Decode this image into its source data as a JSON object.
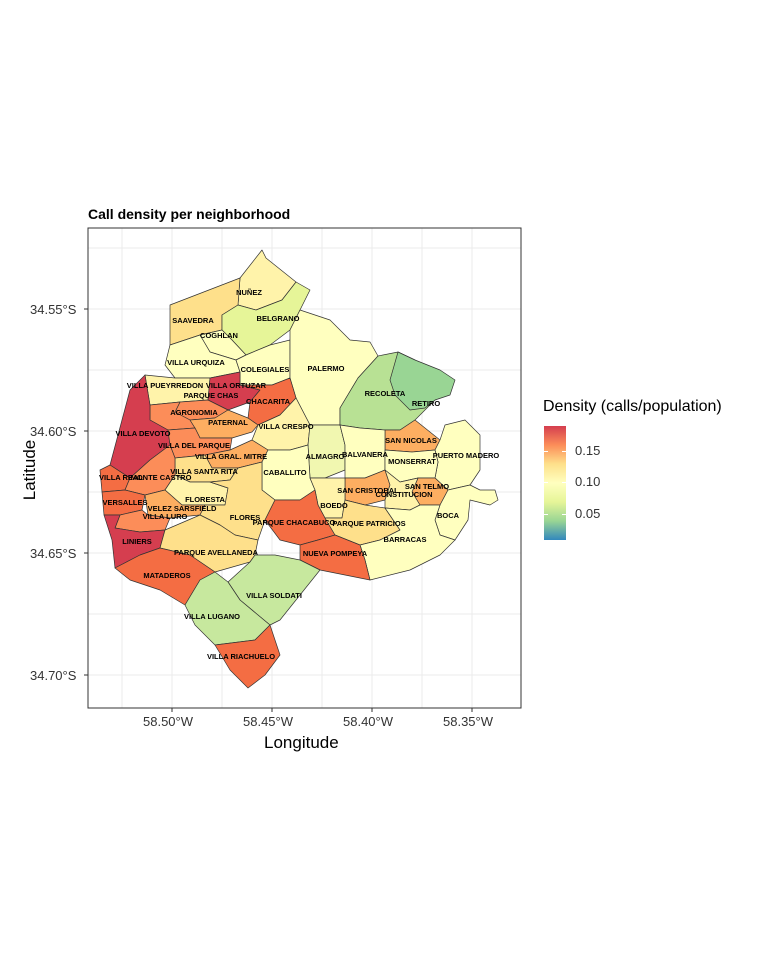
{
  "title": "Call density per neighborhood",
  "xlabel": "Longitude",
  "ylabel": "Latitude",
  "x_ticks": [
    "58.50°W",
    "58.45°W",
    "58.40°W",
    "58.35°W"
  ],
  "y_ticks": [
    "34.55°S",
    "34.60°S",
    "34.65°S",
    "34.70°S"
  ],
  "legend": {
    "title": "Density (calls/population)",
    "labels": [
      "0.15",
      "0.10",
      "0.05"
    ],
    "colors": [
      "#d53e4f",
      "#fc8d59",
      "#fee08b",
      "#ffffbf",
      "#e6f598",
      "#99d594",
      "#3288bd"
    ]
  },
  "neighborhoods": [
    {
      "name": "NUÑEZ"
    },
    {
      "name": "SAAVEDRA"
    },
    {
      "name": "BELGRANO"
    },
    {
      "name": "COGHLAN"
    },
    {
      "name": "VILLA URQUIZA"
    },
    {
      "name": "COLEGIALES"
    },
    {
      "name": "PALERMO"
    },
    {
      "name": "VILLA PUEYRREDON"
    },
    {
      "name": "VILLA ORTUZAR"
    },
    {
      "name": "PARQUE CHAS"
    },
    {
      "name": "RECOLETA"
    },
    {
      "name": "CHACARITA"
    },
    {
      "name": "AGRONOMIA"
    },
    {
      "name": "RETIRO"
    },
    {
      "name": "PATERNAL"
    },
    {
      "name": "VILLA CRESPO"
    },
    {
      "name": "VILLA DEVOTO"
    },
    {
      "name": "SAN NICOLAS"
    },
    {
      "name": "VILLA DEL PARQUE"
    },
    {
      "name": "ALMAGRO"
    },
    {
      "name": "BALVANERA"
    },
    {
      "name": "VILLA GRAL. MITRE"
    },
    {
      "name": "PUERTO MADERO"
    },
    {
      "name": "MONSERRAT"
    },
    {
      "name": "VILLA SANTA RITA"
    },
    {
      "name": "CABALLITO"
    },
    {
      "name": "VILLA REAL"
    },
    {
      "name": "MONTE CASTRO"
    },
    {
      "name": "SAN TELMO"
    },
    {
      "name": "SAN CRISTOBAL"
    },
    {
      "name": "CONSTITUCION"
    },
    {
      "name": "FLORESTA"
    },
    {
      "name": "VERSALLES"
    },
    {
      "name": "VELEZ SARSFIELD"
    },
    {
      "name": "BOEDO"
    },
    {
      "name": "VILLA LURO"
    },
    {
      "name": "FLORES"
    },
    {
      "name": "BOCA"
    },
    {
      "name": "PARQUE CHACABUCO"
    },
    {
      "name": "PARQUE PATRICIOS"
    },
    {
      "name": "BARRACAS"
    },
    {
      "name": "LINIERS"
    },
    {
      "name": "PARQUE AVELLANEDA"
    },
    {
      "name": "NUEVA POMPEYA"
    },
    {
      "name": "MATADEROS"
    },
    {
      "name": "VILLA SOLDATI"
    },
    {
      "name": "VILLA LUGANO"
    },
    {
      "name": "VILLA RIACHUELO"
    }
  ]
}
